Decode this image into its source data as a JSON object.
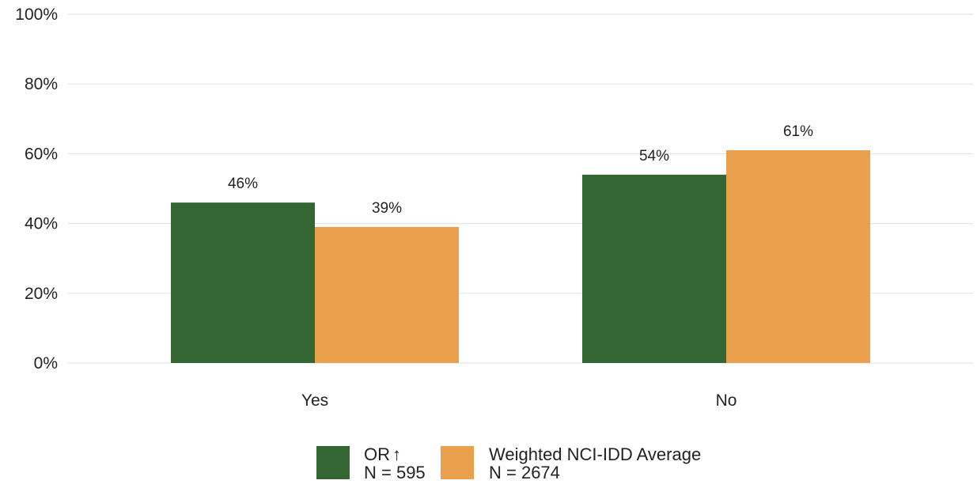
{
  "chart_data": {
    "type": "bar",
    "categories": [
      "Yes",
      "No"
    ],
    "series": [
      {
        "name": "OR",
        "legend_line1": "OR",
        "legend_line2": "N = 595",
        "color": "#336633",
        "values": [
          46,
          54
        ]
      },
      {
        "name": "Weighted NCI-IDD Average",
        "legend_line1": "Weighted NCI-IDD Average",
        "legend_line2": "N = 2674",
        "color": "#eba04d",
        "values": [
          39,
          61
        ]
      }
    ],
    "data_labels": [
      [
        "46%",
        "54%"
      ],
      [
        "39%",
        "61%"
      ]
    ],
    "yticks": [
      "0%",
      "20%",
      "40%",
      "60%",
      "80%",
      "100%"
    ],
    "ylim": [
      0,
      100
    ],
    "grid": true,
    "legend_position": "bottom",
    "legend_marker": "↑"
  }
}
